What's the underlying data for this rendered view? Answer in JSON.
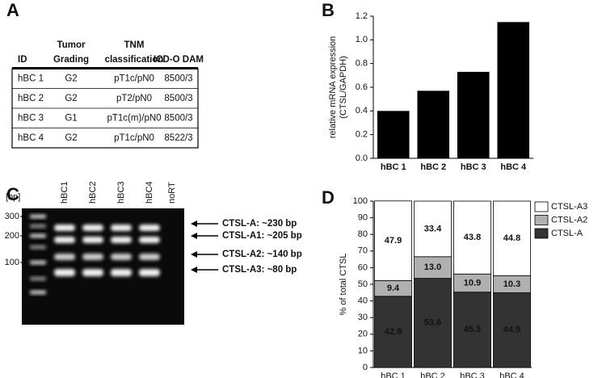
{
  "panel_labels": [
    "A",
    "B",
    "C",
    "D"
  ],
  "table": {
    "columns": [
      [
        "ID"
      ],
      [
        "Tumor",
        "Grading"
      ],
      [
        "TNM",
        "classification"
      ],
      [
        "ICD-O DAM"
      ]
    ],
    "rows": [
      [
        "hBC 1",
        "G2",
        "pT1c/pN0",
        "8500/3"
      ],
      [
        "hBC 2",
        "G2",
        "pT2/pN0",
        "8500/3"
      ],
      [
        "hBC 3",
        "G1",
        "pT1c(m)/pN0",
        "8500/3"
      ],
      [
        "hBC 4",
        "G2",
        "pT1c/pN0",
        "8522/3"
      ]
    ]
  },
  "gel": {
    "unit": "[bp]",
    "ladder": [
      300,
      200,
      100
    ],
    "lanes": [
      "hBC1",
      "hBC2",
      "hBC3",
      "hBC4",
      "noRT"
    ],
    "bands": [
      "CTSL-A:   ~230 bp",
      "CTSL-A1: ~205 bp",
      "CTSL-A2:  ~140 bp",
      "CTSL-A3: ~80 bp"
    ]
  },
  "chart_data": [
    {
      "type": "bar",
      "y_label": [
        "relative mRNA expression",
        "(CTSL/GAPDH)"
      ],
      "categories": [
        "hBC 1",
        "hBC 2",
        "hBC 3",
        "hBC 4"
      ],
      "values": [
        0.4,
        0.57,
        0.73,
        1.15
      ],
      "color": "#000000",
      "ylim": [
        0,
        1.2
      ],
      "yticks": [
        {
          "value": 0,
          "label": "0.0"
        },
        0.2,
        0.4,
        0.6,
        0.8,
        {
          "value": 1,
          "label": "1.0"
        },
        1.2
      ]
    },
    {
      "type": "stacked_bar",
      "y_label": "% of total CTSL",
      "categories": [
        "hBC 1",
        "hBC 2",
        "hBC 3",
        "hBC 4"
      ],
      "series": [
        {
          "name": "CTSL-A",
          "color": "#333333",
          "values": [
            42.8,
            53.6,
            45.3,
            44.9
          ]
        },
        {
          "name": "CTSL-A2",
          "color": "#b0b0b0",
          "values": [
            9.4,
            13,
            10.9,
            10.3
          ],
          "value_labels": [
            "9.4",
            "13.0",
            "10.9",
            "10.3"
          ]
        },
        {
          "name": "CTSL-A3",
          "color": "#ffffff",
          "values": [
            47.9,
            33.4,
            43.8,
            44.8
          ]
        }
      ],
      "ylim": [
        0,
        100
      ],
      "yticks": [
        0,
        10,
        20,
        30,
        40,
        50,
        60,
        70,
        80,
        90,
        100
      ],
      "legend": "right"
    }
  ]
}
